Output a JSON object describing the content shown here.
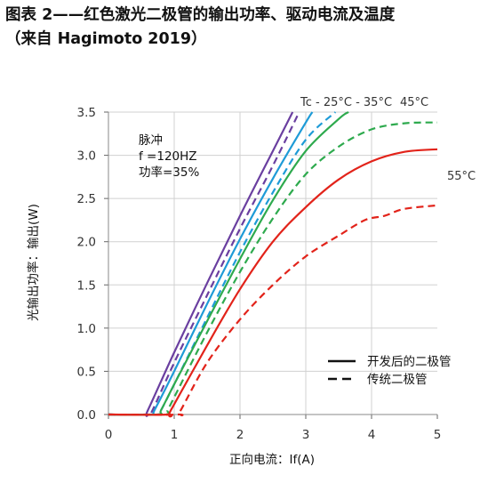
{
  "figure": {
    "title_line1": "图表 2——红色激光二极管的输出功率、驱动电流及温度",
    "title_line2": "（来自 Hagimoto 2019）"
  },
  "chart_data": {
    "type": "line",
    "xlabel": "正向电流：If(A)",
    "ylabel": "光输出功率：输出(W)",
    "xlim": [
      0,
      5
    ],
    "ylim": [
      0,
      3.5
    ],
    "x_ticks": [
      "0",
      "1",
      "2",
      "3",
      "4",
      "5"
    ],
    "y_ticks": [
      "0.0",
      "0.5",
      "1.0",
      "1.5",
      "2.0",
      "2.5",
      "3.0",
      "3.5"
    ],
    "grid": true,
    "annotation_lines": [
      "脉冲",
      "f =120HZ",
      "功率=35%"
    ],
    "temperature_labels": {
      "tc_25_35": "Tc - 25°C - 35°C",
      "t45": "45°C",
      "t55": "55°C"
    },
    "legend": {
      "position": "bottom-right",
      "solid_label": "开发后的二极管",
      "dashed_label": "传统二极管"
    },
    "series": [
      {
        "color": "#6a3fa0",
        "style": "solid",
        "points": [
          [
            0,
            0
          ],
          [
            0.55,
            0
          ],
          [
            0.6,
            0.05
          ],
          [
            1.0,
            0.72
          ],
          [
            1.5,
            1.52
          ],
          [
            2.0,
            2.3
          ],
          [
            2.5,
            3.05
          ],
          [
            2.8,
            3.5
          ]
        ]
      },
      {
        "color": "#6a3fa0",
        "style": "dashed",
        "points": [
          [
            0,
            0
          ],
          [
            0.6,
            0
          ],
          [
            0.67,
            0.05
          ],
          [
            1.0,
            0.6
          ],
          [
            1.5,
            1.38
          ],
          [
            2.0,
            2.15
          ],
          [
            2.5,
            2.88
          ],
          [
            2.9,
            3.5
          ]
        ]
      },
      {
        "color": "#1e9bd7",
        "style": "solid",
        "points": [
          [
            0,
            0
          ],
          [
            0.65,
            0
          ],
          [
            0.7,
            0.05
          ],
          [
            1.0,
            0.5
          ],
          [
            1.5,
            1.28
          ],
          [
            2.0,
            2.03
          ],
          [
            2.5,
            2.73
          ],
          [
            3.0,
            3.38
          ],
          [
            3.1,
            3.5
          ]
        ]
      },
      {
        "color": "#1e9bd7",
        "style": "dashed",
        "points": [
          [
            0,
            0
          ],
          [
            0.75,
            0
          ],
          [
            0.8,
            0.05
          ],
          [
            1.0,
            0.35
          ],
          [
            1.5,
            1.12
          ],
          [
            2.0,
            1.88
          ],
          [
            2.5,
            2.57
          ],
          [
            3.0,
            3.18
          ],
          [
            3.45,
            3.5
          ]
        ]
      },
      {
        "color": "#2eaa4e",
        "style": "solid",
        "points": [
          [
            0,
            0
          ],
          [
            0.75,
            0
          ],
          [
            0.8,
            0.05
          ],
          [
            1.0,
            0.35
          ],
          [
            1.5,
            1.08
          ],
          [
            2.0,
            1.8
          ],
          [
            2.5,
            2.48
          ],
          [
            3.0,
            3.05
          ],
          [
            3.5,
            3.42
          ],
          [
            3.65,
            3.5
          ]
        ]
      },
      {
        "color": "#2eaa4e",
        "style": "dashed",
        "points": [
          [
            0,
            0
          ],
          [
            0.85,
            0
          ],
          [
            0.9,
            0.05
          ],
          [
            1.0,
            0.2
          ],
          [
            1.5,
            0.95
          ],
          [
            2.0,
            1.65
          ],
          [
            2.5,
            2.27
          ],
          [
            3.0,
            2.78
          ],
          [
            3.5,
            3.1
          ],
          [
            4.0,
            3.3
          ],
          [
            4.5,
            3.37
          ],
          [
            5.0,
            3.38
          ]
        ]
      },
      {
        "color": "#e2231a",
        "style": "solid",
        "points": [
          [
            0,
            0
          ],
          [
            0.9,
            0
          ],
          [
            0.95,
            0.05
          ],
          [
            1.5,
            0.8
          ],
          [
            2.0,
            1.45
          ],
          [
            2.5,
            2.0
          ],
          [
            3.0,
            2.4
          ],
          [
            3.5,
            2.72
          ],
          [
            4.0,
            2.93
          ],
          [
            4.5,
            3.04
          ],
          [
            5.0,
            3.07
          ]
        ]
      },
      {
        "color": "#e2231a",
        "style": "dashed",
        "points": [
          [
            0,
            0
          ],
          [
            1.05,
            0
          ],
          [
            1.1,
            0.05
          ],
          [
            1.5,
            0.6
          ],
          [
            2.0,
            1.1
          ],
          [
            2.5,
            1.5
          ],
          [
            3.0,
            1.83
          ],
          [
            3.5,
            2.07
          ],
          [
            3.9,
            2.25
          ],
          [
            4.2,
            2.3
          ],
          [
            4.5,
            2.38
          ],
          [
            5.0,
            2.42
          ]
        ]
      }
    ]
  }
}
